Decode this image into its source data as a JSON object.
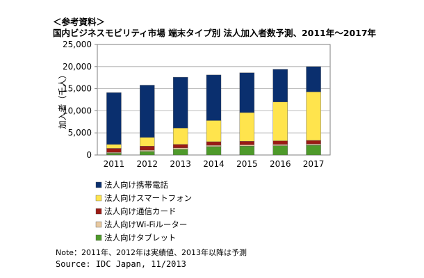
{
  "header": {
    "ref_label": "＜参考資料＞"
  },
  "chart_data": {
    "type": "bar",
    "stacked": true,
    "title": "国内ビジネスモビリティ市場 端末タイプ別 法人加入者数予測、2011年～2017年",
    "xlabel": "",
    "ylabel": "加入者（千人）",
    "ylim": [
      0,
      25000
    ],
    "yticks": [
      0,
      5000,
      10000,
      15000,
      20000,
      25000
    ],
    "ytick_labels": [
      "0",
      "5,000",
      "10,000",
      "15,000",
      "20,000",
      "25,000"
    ],
    "grid": true,
    "legend_position": "bottom-left",
    "categories": [
      "2011",
      "2012",
      "2013",
      "2014",
      "2015",
      "2016",
      "2017"
    ],
    "series": [
      {
        "name": "法人向けタブレット",
        "color": "#4e9a2a",
        "values": [
          400,
          800,
          1300,
          1900,
          2000,
          2100,
          2200
        ]
      },
      {
        "name": "法人向けWi-Fiルーター",
        "color": "#e8c9a0",
        "values": [
          200,
          300,
          300,
          300,
          300,
          300,
          300
        ]
      },
      {
        "name": "法人向け通信カード",
        "color": "#9b1a14",
        "values": [
          900,
          900,
          800,
          800,
          800,
          800,
          800
        ]
      },
      {
        "name": "法人向けスマートフォン",
        "color": "#ffe44d",
        "values": [
          900,
          2000,
          3700,
          4800,
          6500,
          8800,
          11000
        ]
      },
      {
        "name": "法人向け携帯電話",
        "color": "#0a2f6e",
        "values": [
          11700,
          11800,
          11500,
          10300,
          9000,
          7400,
          5700
        ]
      }
    ],
    "legend_order": [
      "法人向け携帯電話",
      "法人向けスマートフォン",
      "法人向け通信カード",
      "法人向けWi-Fiルーター",
      "法人向けタブレット"
    ]
  },
  "footer": {
    "note": "Note：2011年、2012年は実績値、2013年以降は予測",
    "source": "Source: IDC Japan, 11/2013"
  }
}
